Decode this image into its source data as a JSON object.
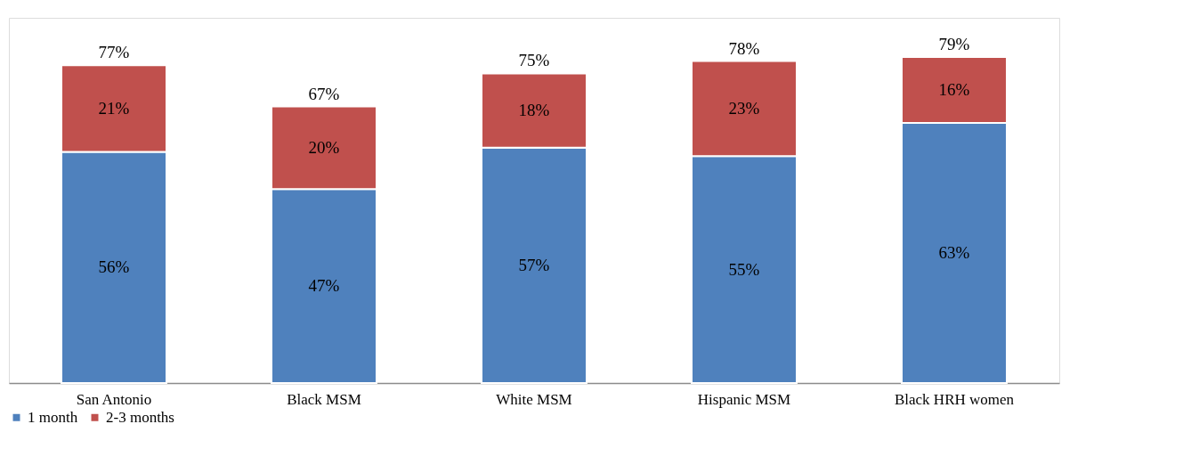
{
  "chart_data": {
    "type": "bar",
    "stacked": true,
    "legend": "bottom",
    "categories": [
      "San Antonio",
      "Black MSM",
      "White MSM",
      "Hispanic MSM",
      "Black HRH women"
    ],
    "series": [
      {
        "name": "1 month",
        "color": "#4f81bd",
        "values": [
          56,
          47,
          57,
          55,
          63
        ],
        "value_labels": [
          "56%",
          "47%",
          "57%",
          "55%",
          "63%"
        ]
      },
      {
        "name": "2-3 months",
        "color": "#c0504d",
        "values": [
          21,
          20,
          18,
          23,
          16
        ],
        "value_labels": [
          "21%",
          "20%",
          "18%",
          "23%",
          "16%"
        ]
      }
    ],
    "totals": [
      "77%",
      "67%",
      "75%",
      "78%",
      "79%"
    ]
  }
}
